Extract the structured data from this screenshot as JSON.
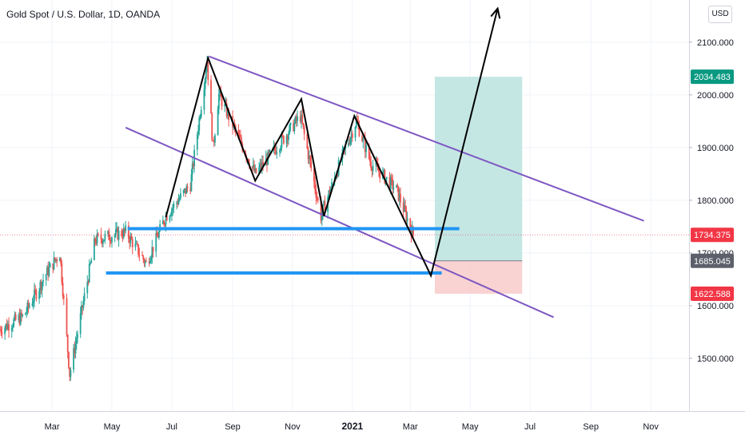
{
  "header": {
    "title": "Gold Spot / U.S. Dollar, 1D, OANDA",
    "currency": "USD"
  },
  "colors": {
    "bull": "#26a69a",
    "bear": "#ef5350",
    "channel": "#7e57c2",
    "support": "#2196f3",
    "path": "#000000",
    "target": "#b2dfdb",
    "stop": "#f8c7c7",
    "tag_target": "#089981",
    "tag_last": "#f23645",
    "tag_entry": "#5d606b",
    "tag_stop": "#f23645"
  },
  "chart_data": {
    "type": "candlestick",
    "instrument": "Gold Spot / U.S. Dollar",
    "interval": "1D",
    "source": "OANDA",
    "x_axis": {
      "ticks": [
        "Mar",
        "May",
        "Jul",
        "Sep",
        "Nov",
        "2021",
        "Mar",
        "May",
        "Jul",
        "Sep",
        "Nov"
      ],
      "tick_dates": [
        "2020-03-01",
        "2020-05-01",
        "2020-07-01",
        "2020-09-01",
        "2020-11-01",
        "2021-01-01",
        "2021-03-01",
        "2021-05-01",
        "2021-07-01",
        "2021-09-01",
        "2021-11-01"
      ],
      "range": [
        "2020-01-08",
        "2021-12-10"
      ]
    },
    "y_axis": {
      "ticks": [
        "2100.000",
        "2000.000",
        "1900.000",
        "1800.000",
        "1700.000",
        "1600.000",
        "1500.000"
      ],
      "range": [
        1400,
        2180
      ]
    },
    "price_tags": [
      {
        "label": "2034.483",
        "value": 2034.483,
        "role": "target"
      },
      {
        "label": "1734.375",
        "value": 1734.375,
        "role": "last-price"
      },
      {
        "label": "1685.045",
        "value": 1685.045,
        "role": "entry"
      },
      {
        "label": "1622.588",
        "value": 1622.588,
        "role": "stop"
      }
    ],
    "price_path": [
      {
        "date": "2020-01-08",
        "value": 1555
      },
      {
        "date": "2020-02-01",
        "value": 1580
      },
      {
        "date": "2020-02-24",
        "value": 1660
      },
      {
        "date": "2020-03-09",
        "value": 1700
      },
      {
        "date": "2020-03-19",
        "value": 1470
      },
      {
        "date": "2020-04-14",
        "value": 1725
      },
      {
        "date": "2020-05-15",
        "value": 1740
      },
      {
        "date": "2020-06-05",
        "value": 1680
      },
      {
        "date": "2020-06-25",
        "value": 1770
      },
      {
        "date": "2020-07-20",
        "value": 1830
      },
      {
        "date": "2020-08-06",
        "value": 2065
      },
      {
        "date": "2020-08-12",
        "value": 1900
      },
      {
        "date": "2020-08-18",
        "value": 2000
      },
      {
        "date": "2020-09-24",
        "value": 1850
      },
      {
        "date": "2020-10-20",
        "value": 1910
      },
      {
        "date": "2020-11-09",
        "value": 1960
      },
      {
        "date": "2020-11-30",
        "value": 1770
      },
      {
        "date": "2020-12-21",
        "value": 1880
      },
      {
        "date": "2021-01-05",
        "value": 1950
      },
      {
        "date": "2021-01-20",
        "value": 1870
      },
      {
        "date": "2021-02-15",
        "value": 1820
      },
      {
        "date": "2021-03-04",
        "value": 1734
      }
    ],
    "annotations": {
      "channel_upper": [
        {
          "date": "2020-08-08",
          "value": 2073
        },
        {
          "date": "2021-10-25",
          "value": 1761
        }
      ],
      "channel_lower": [
        {
          "date": "2020-05-15",
          "value": 1938
        },
        {
          "date": "2021-07-25",
          "value": 1578
        }
      ],
      "support_1": [
        {
          "date": "2020-05-17",
          "value": 1746
        },
        {
          "date": "2021-04-20",
          "value": 1746
        }
      ],
      "support_2": [
        {
          "date": "2020-04-25",
          "value": 1662
        },
        {
          "date": "2021-04-02",
          "value": 1662
        }
      ],
      "projected_path": [
        {
          "date": "2020-06-25",
          "value": 1768
        },
        {
          "date": "2020-08-07",
          "value": 2070
        },
        {
          "date": "2020-09-24",
          "value": 1837
        },
        {
          "date": "2020-11-10",
          "value": 1992
        },
        {
          "date": "2020-12-03",
          "value": 1770
        },
        {
          "date": "2021-01-03",
          "value": 1960
        },
        {
          "date": "2021-03-22",
          "value": 1657
        },
        {
          "date": "2021-05-29",
          "value": 2164
        }
      ],
      "target_zone": {
        "from": "2021-03-26",
        "to": "2021-06-23",
        "low": 1685.045,
        "high": 2034.483
      },
      "stop_zone": {
        "from": "2021-03-26",
        "to": "2021-06-23",
        "low": 1622.588,
        "high": 1685.045
      }
    }
  }
}
